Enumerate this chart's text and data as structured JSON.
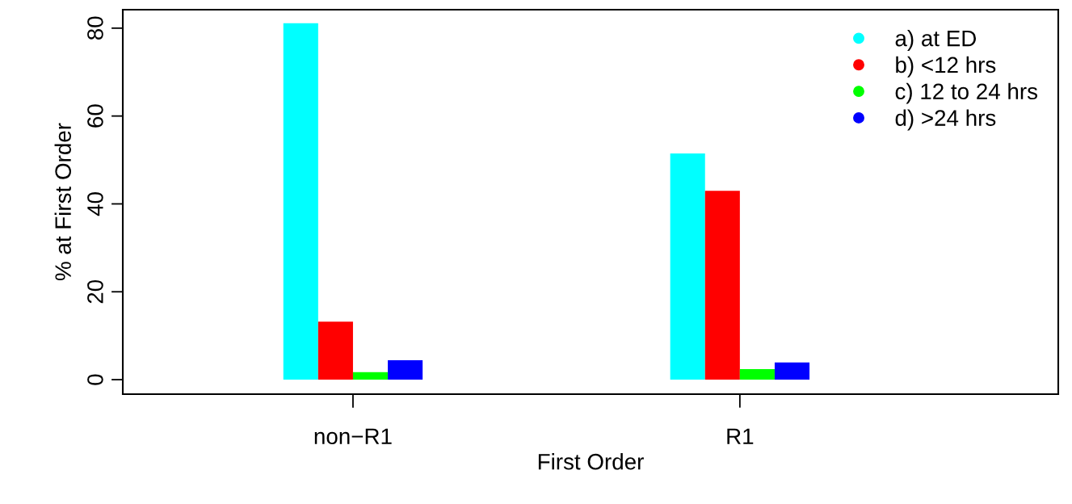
{
  "chart_data": {
    "type": "bar",
    "xlabel": "First Order",
    "ylabel": "% at First Order",
    "categories": [
      "non−R1",
      "R1"
    ],
    "series": [
      {
        "name": "a) at ED",
        "color": "#00ffff",
        "values": [
          81.1,
          51.5
        ]
      },
      {
        "name": "b) <12 hrs",
        "color": "#ff0000",
        "values": [
          13.2,
          43.0
        ]
      },
      {
        "name": "c) 12 to 24 hrs",
        "color": "#00ff00",
        "values": [
          1.7,
          2.4
        ]
      },
      {
        "name": "d) >24 hrs",
        "color": "#0000ff",
        "values": [
          4.4,
          3.9
        ]
      }
    ],
    "ylim": [
      -3.3,
      84.2
    ],
    "yticks": [
      0,
      20,
      40,
      60,
      80
    ],
    "grid": false,
    "legend": "top right"
  }
}
